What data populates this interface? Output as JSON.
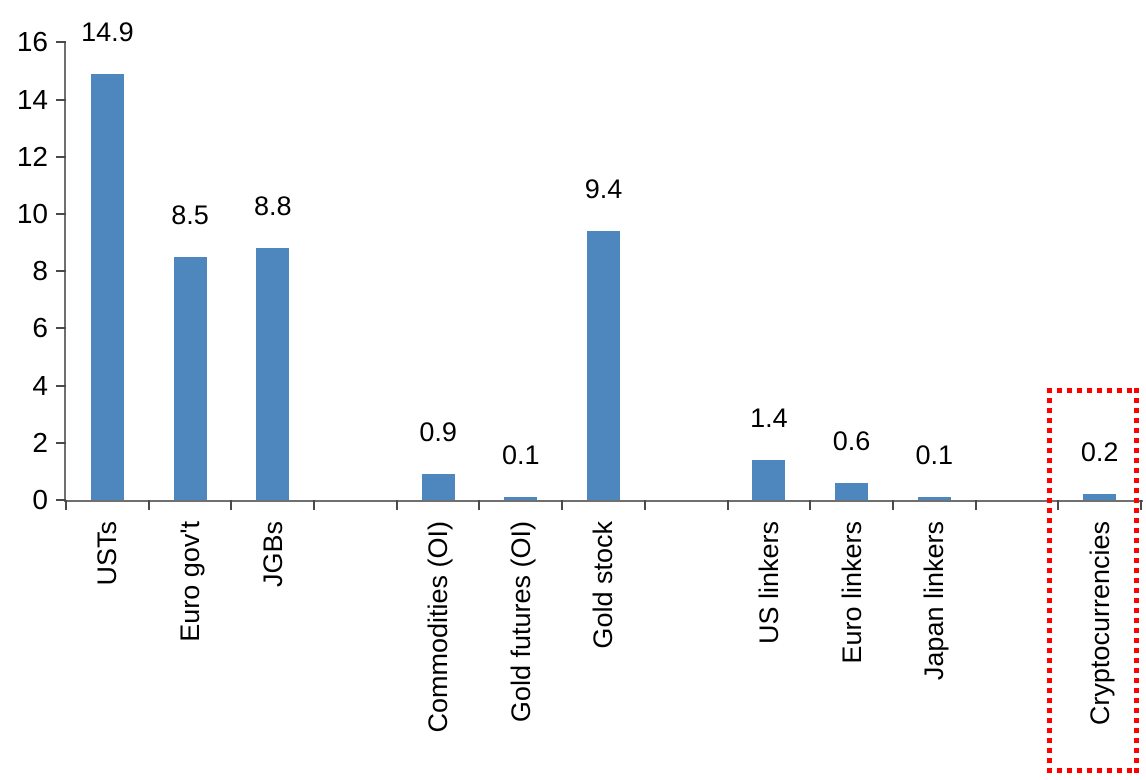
{
  "chart_data": {
    "type": "bar",
    "title": "",
    "categories": [
      "USTs",
      "Euro gov't",
      "JGBs",
      "Commodities (OI)",
      "Gold futures (OI)",
      "Gold stock",
      "US linkers",
      "Euro linkers",
      "Japan linkers",
      "Cryptocurrencies"
    ],
    "values": [
      14.9,
      8.5,
      8.8,
      0.9,
      0.1,
      9.4,
      1.4,
      0.6,
      0.1,
      0.2
    ],
    "value_labels": [
      "14.9",
      "8.5",
      "8.8",
      "0.9",
      "0.1",
      "9.4",
      "1.4",
      "0.6",
      "0.1",
      "0.2"
    ],
    "xlabel": "",
    "ylabel": "",
    "yticks": [
      0,
      2,
      4,
      6,
      8,
      10,
      12,
      14,
      16
    ],
    "ylim": [
      0,
      16
    ],
    "bar_color": "#4E87BE",
    "axis_color": "#6f6f6f",
    "text_color": "#000000",
    "grid": false,
    "legend": false,
    "layout": {
      "slots": [
        1,
        2,
        3,
        5,
        6,
        7,
        9,
        10,
        11,
        13
      ],
      "total_slots": 13,
      "category_labels_rotated_degrees": -90
    },
    "highlight": {
      "category": "Cryptocurrencies",
      "style": "dotted-rectangle",
      "color": "#FF0000"
    }
  }
}
